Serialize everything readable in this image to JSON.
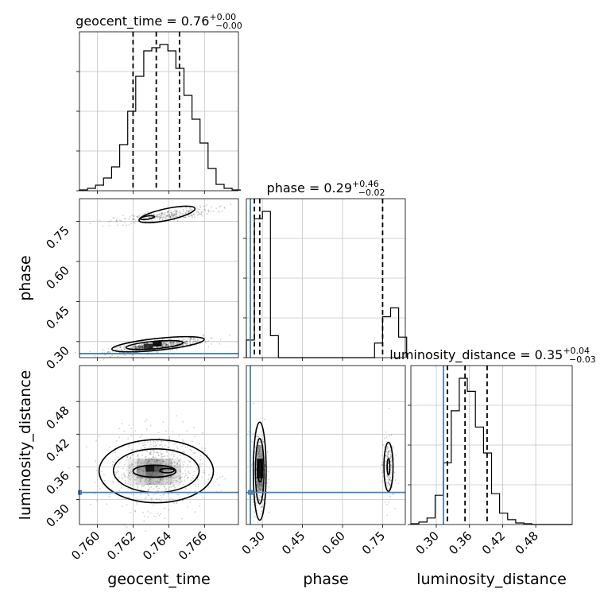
{
  "chart_data": {
    "type": "corner",
    "parameters": [
      "geocent_time",
      "phase",
      "luminosity_distance"
    ],
    "truths": {
      "geocent_time": null,
      "phase": 0.255,
      "luminosity_distance": 0.313
    },
    "truth_color": "#4682b4",
    "titles": [
      {
        "param": "geocent_time",
        "text": "geocent_time = 0.76",
        "sup": "+0.00",
        "sub": "−0.00"
      },
      {
        "param": "phase",
        "text": "phase = 0.29",
        "sup": "+0.46",
        "sub": "−0.02"
      },
      {
        "param": "luminosity_distance",
        "text": "luminosity_distance = 0.35",
        "sup": "+0.04",
        "sub": "−0.03"
      }
    ],
    "axes": {
      "geocent_time": {
        "label": "geocent_time",
        "range": [
          0.759,
          0.7679
        ],
        "ticks": [
          0.76,
          0.762,
          0.764,
          0.766
        ],
        "tick_labels": [
          "0.760",
          "0.762",
          "0.764",
          "0.766"
        ]
      },
      "phase": {
        "label": "phase",
        "range": [
          0.24,
          0.835
        ],
        "ticks": [
          0.3,
          0.45,
          0.6,
          0.75
        ],
        "tick_labels": [
          "0.30",
          "0.45",
          "0.60",
          "0.75"
        ]
      },
      "luminosity_distance": {
        "label": "luminosity_distance",
        "range": [
          0.254,
          0.546
        ],
        "ticks": [
          0.3,
          0.36,
          0.42,
          0.48
        ],
        "tick_labels": [
          "0.30",
          "0.36",
          "0.42",
          "0.48"
        ]
      }
    },
    "marginals": {
      "geocent_time": {
        "bin_edges": [
          0.759,
          0.75945,
          0.7599,
          0.76035,
          0.7608,
          0.76125,
          0.7617,
          0.76215,
          0.7626,
          0.76305,
          0.7635,
          0.76395,
          0.7644,
          0.76485,
          0.7653,
          0.76575,
          0.7662,
          0.76665,
          0.7671,
          0.76755,
          0.768
        ],
        "counts": [
          0.5,
          1.5,
          3.5,
          8,
          15,
          29,
          50,
          72,
          88,
          90,
          92,
          88,
          77,
          60,
          45,
          30,
          14,
          4,
          1.5,
          0.5
        ],
        "quantiles": [
          0.762,
          0.7633,
          0.7646
        ]
      },
      "phase": {
        "bin_edges": [
          0.24,
          0.27,
          0.3,
          0.33,
          0.36,
          0.39,
          0.42,
          0.45,
          0.48,
          0.51,
          0.54,
          0.57,
          0.6,
          0.63,
          0.66,
          0.69,
          0.72,
          0.75,
          0.78,
          0.81,
          0.84
        ],
        "counts": [
          12,
          95,
          100,
          15,
          0,
          0,
          0,
          0,
          0,
          0,
          0,
          0,
          0,
          0,
          0,
          0,
          10,
          28,
          34,
          14
        ],
        "quantiles": [
          0.27,
          0.29,
          0.75
        ]
      },
      "luminosity_distance": {
        "bin_edges": [
          0.254,
          0.2686,
          0.2832,
          0.2978,
          0.3124,
          0.327,
          0.3416,
          0.3562,
          0.3708,
          0.3854,
          0.4,
          0.4146,
          0.4292,
          0.4438,
          0.4584,
          0.473,
          0.4876,
          0.5022,
          0.5168,
          0.5314,
          0.546
        ],
        "counts": [
          0.5,
          1.5,
          4,
          18,
          38,
          70,
          90,
          82,
          60,
          44,
          19,
          7,
          3,
          1,
          0.5,
          0,
          0,
          0,
          0,
          0
        ],
        "quantiles": [
          0.32,
          0.352,
          0.392
        ]
      }
    },
    "grid": true
  }
}
